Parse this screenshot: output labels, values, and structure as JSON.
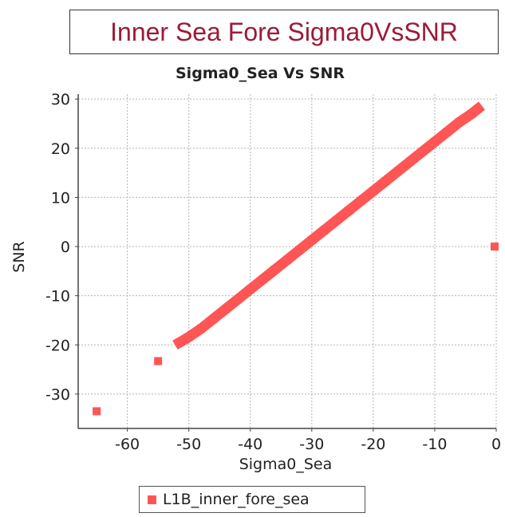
{
  "header": {
    "title": "Inner Sea Fore Sigma0VsSNR"
  },
  "colors": {
    "series": "#ff5555",
    "title": "#9b1b3a",
    "grid": "#b4b4b4"
  },
  "chart_data": {
    "type": "scatter",
    "title": "Sigma0_Sea Vs SNR",
    "xlabel": "Sigma0_Sea",
    "ylabel": "SNR",
    "xlim": [
      -68,
      0
    ],
    "ylim": [
      -37,
      31
    ],
    "grid": true,
    "legend_position": "bottom",
    "x_ticks": [
      -60,
      -50,
      -40,
      -30,
      -20,
      -10,
      0
    ],
    "x_tick_labels": [
      "-60",
      "-50",
      "-40",
      "-30",
      "-20",
      "-10",
      "0"
    ],
    "y_ticks": [
      30,
      20,
      10,
      0,
      -10,
      -20,
      -30
    ],
    "y_tick_labels": [
      "30",
      "20",
      "10",
      "0",
      "-10",
      "-20",
      "-30"
    ],
    "series": [
      {
        "name": "L1B_inner_fore_sea",
        "points": [
          {
            "x": -65,
            "y": -33.5
          },
          {
            "x": -55,
            "y": -23.3
          },
          {
            "x": -51.5,
            "y": -19.5
          },
          {
            "x": -50,
            "y": -18.4
          },
          {
            "x": -48,
            "y": -16.7
          },
          {
            "x": -46,
            "y": -14.7
          },
          {
            "x": -44,
            "y": -12.7
          },
          {
            "x": -42,
            "y": -10.7
          },
          {
            "x": -40,
            "y": -8.7
          },
          {
            "x": -38,
            "y": -6.7
          },
          {
            "x": -36,
            "y": -4.7
          },
          {
            "x": -34,
            "y": -2.7
          },
          {
            "x": -32,
            "y": -0.7
          },
          {
            "x": -30,
            "y": 1.3
          },
          {
            "x": -28,
            "y": 3.3
          },
          {
            "x": -26,
            "y": 5.3
          },
          {
            "x": -24,
            "y": 7.3
          },
          {
            "x": -22,
            "y": 9.3
          },
          {
            "x": -20,
            "y": 11.3
          },
          {
            "x": -18,
            "y": 13.3
          },
          {
            "x": -16,
            "y": 15.3
          },
          {
            "x": -14,
            "y": 17.3
          },
          {
            "x": -12,
            "y": 19.3
          },
          {
            "x": -10,
            "y": 21.3
          },
          {
            "x": -8,
            "y": 23.3
          },
          {
            "x": -6,
            "y": 25.3
          },
          {
            "x": -4,
            "y": 27
          },
          {
            "x": -3,
            "y": 28
          },
          {
            "x": 0,
            "y": 0
          }
        ]
      }
    ]
  }
}
